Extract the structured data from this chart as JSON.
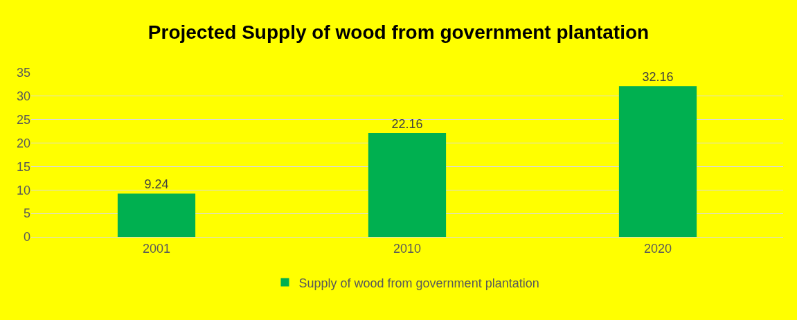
{
  "chart_data": {
    "type": "bar",
    "title": "Projected Supply of wood from government plantation",
    "categories": [
      "2001",
      "2010",
      "2020"
    ],
    "series": [
      {
        "name": "Supply of wood from government plantation",
        "color": "#00b050",
        "values": [
          9.24,
          22.16,
          32.16
        ]
      }
    ],
    "ylim": [
      0,
      35
    ],
    "yticks": [
      0,
      5,
      10,
      15,
      20,
      25,
      30,
      35
    ],
    "grid": "y",
    "legend": "bottom",
    "data_labels": true
  }
}
